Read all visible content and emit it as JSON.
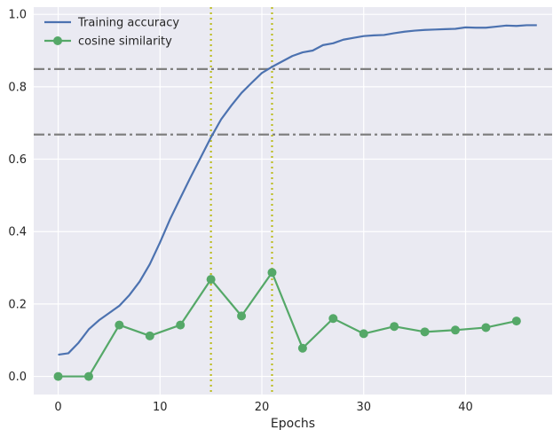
{
  "chart_data": {
    "type": "line",
    "xlabel": "Epochs",
    "ylabel": "",
    "xlim": [
      -2.4,
      48.5
    ],
    "ylim": [
      -0.05,
      1.02
    ],
    "xticks": [
      0,
      10,
      20,
      30,
      40
    ],
    "yticks": [
      0.0,
      0.2,
      0.4,
      0.6,
      0.8,
      1.0
    ],
    "xtick_labels": [
      "0",
      "10",
      "20",
      "30",
      "40"
    ],
    "ytick_labels": [
      "0.0",
      "0.2",
      "0.4",
      "0.6",
      "0.8",
      "1.0"
    ],
    "grid": true,
    "legend_position": "top-left",
    "background": "#eaeaf2",
    "series": [
      {
        "name": "Training accuracy",
        "color": "#4c72b0",
        "marker": "none",
        "x": [
          0,
          1,
          2,
          3,
          4,
          5,
          6,
          7,
          8,
          9,
          10,
          11,
          12,
          13,
          14,
          15,
          16,
          17,
          18,
          19,
          20,
          21,
          22,
          23,
          24,
          25,
          26,
          27,
          28,
          29,
          30,
          31,
          32,
          33,
          34,
          35,
          36,
          37,
          38,
          39,
          40,
          41,
          42,
          43,
          44,
          45,
          46,
          47
        ],
        "y": [
          0.06,
          0.064,
          0.093,
          0.13,
          0.155,
          0.175,
          0.195,
          0.225,
          0.262,
          0.31,
          0.37,
          0.435,
          0.493,
          0.55,
          0.605,
          0.66,
          0.71,
          0.748,
          0.783,
          0.811,
          0.838,
          0.855,
          0.87,
          0.885,
          0.895,
          0.9,
          0.915,
          0.92,
          0.93,
          0.935,
          0.94,
          0.942,
          0.943,
          0.948,
          0.952,
          0.955,
          0.957,
          0.958,
          0.959,
          0.96,
          0.964,
          0.963,
          0.963,
          0.966,
          0.969,
          0.968,
          0.97,
          0.97
        ]
      },
      {
        "name": "cosine similarity",
        "color": "#55a868",
        "marker": "circle",
        "x": [
          0,
          3,
          6,
          9,
          12,
          15,
          18,
          21,
          24,
          27,
          30,
          33,
          36,
          39,
          42,
          45
        ],
        "y": [
          0.0,
          0.0,
          0.142,
          0.112,
          0.142,
          0.268,
          0.167,
          0.287,
          0.078,
          0.16,
          0.118,
          0.138,
          0.123,
          0.128,
          0.135,
          0.153
        ]
      }
    ],
    "hlines": [
      {
        "y": 0.849,
        "color": "#808080",
        "style": "dashdot"
      },
      {
        "y": 0.668,
        "color": "#808080",
        "style": "dashdot"
      }
    ],
    "vlines": [
      {
        "x": 15,
        "color": "#bcbd22",
        "style": "dotted"
      },
      {
        "x": 21,
        "color": "#bcbd22",
        "style": "dotted"
      }
    ]
  }
}
